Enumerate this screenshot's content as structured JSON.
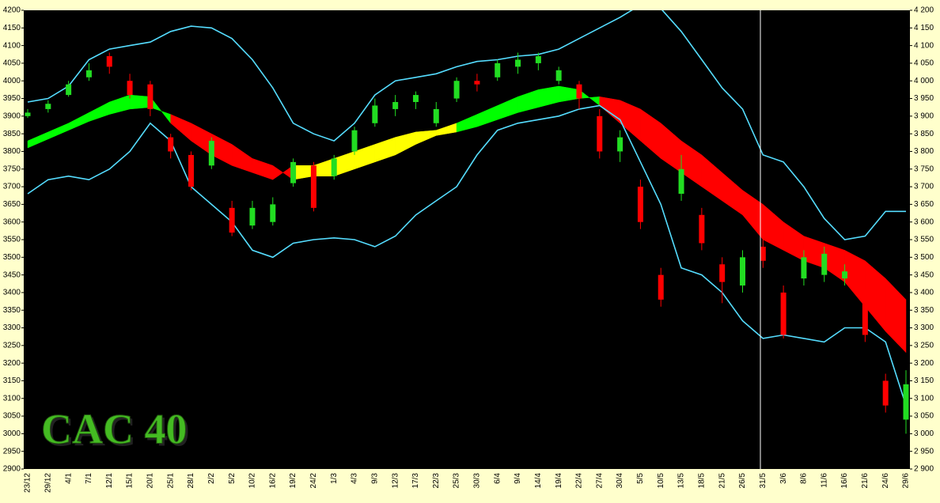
{
  "chart_data": {
    "type": "candlestick",
    "title": "CAC 40",
    "categories": [
      "23/12",
      "29/12",
      "4/1",
      "7/1",
      "12/1",
      "15/1",
      "20/1",
      "25/1",
      "28/1",
      "2/2",
      "5/2",
      "10/2",
      "16/2",
      "19/2",
      "24/2",
      "1/3",
      "4/3",
      "9/3",
      "12/3",
      "17/3",
      "22/3",
      "25/3",
      "30/3",
      "6/4",
      "9/4",
      "14/4",
      "19/4",
      "22/4",
      "27/4",
      "30/4",
      "5/5",
      "10/5",
      "13/5",
      "18/5",
      "21/5",
      "26/5",
      "31/5",
      "3/6",
      "8/6",
      "11/6",
      "16/6",
      "21/6",
      "24/6",
      "29/6"
    ],
    "ohlc": {
      "up_color": "#22dd22",
      "down_color": "#ff0000",
      "open": [
        3900,
        3920,
        3960,
        4010,
        4070,
        4000,
        3990,
        3840,
        3790,
        3760,
        3640,
        3590,
        3600,
        3710,
        3760,
        3730,
        3800,
        3880,
        3920,
        3940,
        3880,
        3950,
        4000,
        4010,
        4040,
        4050,
        4000,
        3990,
        3900,
        3800,
        3700,
        3450,
        3680,
        3620,
        3480,
        3420,
        3530,
        3400,
        3440,
        3450,
        3440,
        3400,
        3150,
        3040
      ],
      "high": [
        3920,
        3945,
        4000,
        4050,
        4080,
        4020,
        4000,
        3850,
        3800,
        3840,
        3660,
        3660,
        3670,
        3780,
        3770,
        3790,
        3870,
        3950,
        3960,
        3970,
        3940,
        4010,
        4020,
        4060,
        4080,
        4080,
        4040,
        4000,
        3920,
        3860,
        3720,
        3470,
        3790,
        3640,
        3500,
        3520,
        3560,
        3420,
        3520,
        3530,
        3480,
        3410,
        3170,
        3180
      ],
      "low": [
        3895,
        3910,
        3955,
        4000,
        4020,
        3950,
        3900,
        3780,
        3690,
        3750,
        3560,
        3580,
        3590,
        3700,
        3630,
        3720,
        3790,
        3870,
        3900,
        3920,
        3870,
        3940,
        3970,
        4000,
        4020,
        4030,
        3990,
        3920,
        3780,
        3770,
        3580,
        3360,
        3660,
        3520,
        3370,
        3400,
        3470,
        3270,
        3420,
        3430,
        3420,
        3260,
        3060,
        3000
      ],
      "close": [
        3910,
        3935,
        3990,
        4030,
        4040,
        3960,
        3920,
        3800,
        3700,
        3830,
        3570,
        3640,
        3650,
        3770,
        3640,
        3780,
        3860,
        3930,
        3940,
        3960,
        3920,
        4000,
        3990,
        4050,
        4060,
        4070,
        4030,
        3950,
        3800,
        3840,
        3600,
        3380,
        3750,
        3540,
        3430,
        3500,
        3490,
        3280,
        3500,
        3510,
        3460,
        3280,
        3080,
        3140
      ]
    },
    "upper_band": {
      "color": "#55ddff",
      "values": [
        3940,
        3950,
        3985,
        4060,
        4090,
        4100,
        4110,
        4140,
        4155,
        4150,
        4120,
        4060,
        3980,
        3880,
        3850,
        3830,
        3880,
        3960,
        4000,
        4010,
        4020,
        4040,
        4055,
        4060,
        4070,
        4075,
        4090,
        4120,
        4150,
        4180,
        4215,
        4205,
        4140,
        4060,
        3980,
        3920,
        3790,
        3770,
        3700,
        3610,
        3550,
        3560,
        3630,
        3630
      ]
    },
    "lower_band": {
      "color": "#55ddff",
      "values": [
        3680,
        3720,
        3730,
        3720,
        3750,
        3800,
        3880,
        3830,
        3700,
        3650,
        3600,
        3520,
        3500,
        3540,
        3550,
        3555,
        3550,
        3530,
        3560,
        3620,
        3660,
        3700,
        3790,
        3860,
        3880,
        3890,
        3900,
        3920,
        3930,
        3890,
        3770,
        3650,
        3470,
        3450,
        3400,
        3320,
        3270,
        3280,
        3270,
        3260,
        3300,
        3300,
        3260,
        3080
      ]
    },
    "ribbon": {
      "fast": [
        3830,
        3855,
        3880,
        3910,
        3940,
        3960,
        3955,
        3880,
        3830,
        3790,
        3760,
        3740,
        3720,
        3760,
        3760,
        3780,
        3800,
        3820,
        3840,
        3855,
        3860,
        3880,
        3905,
        3930,
        3955,
        3975,
        3985,
        3975,
        3930,
        3880,
        3830,
        3780,
        3740,
        3700,
        3660,
        3620,
        3550,
        3520,
        3490,
        3470,
        3430,
        3360,
        3290,
        3230
      ],
      "slow": [
        3810,
        3835,
        3860,
        3885,
        3905,
        3920,
        3925,
        3905,
        3880,
        3850,
        3820,
        3780,
        3760,
        3720,
        3730,
        3730,
        3750,
        3770,
        3790,
        3820,
        3845,
        3855,
        3870,
        3890,
        3910,
        3925,
        3940,
        3950,
        3955,
        3945,
        3920,
        3880,
        3830,
        3790,
        3740,
        3690,
        3650,
        3600,
        3560,
        3540,
        3520,
        3490,
        3440,
        3380
      ],
      "colors": [
        "#00ff00",
        "#00ff00",
        "#00ff00",
        "#00ff00",
        "#00ff00",
        "#00ff00",
        "#00ff00",
        "#ff0000",
        "#ff0000",
        "#ff0000",
        "#ff0000",
        "#ff0000",
        "#ff0000",
        "#ffff00",
        "#ffff00",
        "#ffff00",
        "#ffff00",
        "#ffff00",
        "#ffff00",
        "#ffff00",
        "#ffff00",
        "#00ff00",
        "#00ff00",
        "#00ff00",
        "#00ff00",
        "#00ff00",
        "#00ff00",
        "#00ff00",
        "#ff0000",
        "#ff0000",
        "#ff0000",
        "#ff0000",
        "#ff0000",
        "#ff0000",
        "#ff0000",
        "#ff0000",
        "#ff0000",
        "#ff0000",
        "#ff0000",
        "#ff0000",
        "#ff0000",
        "#ff0000",
        "#ff0000",
        "#ff0000"
      ]
    },
    "ylim": [
      2900,
      4200
    ],
    "yticks": [
      4200,
      4150,
      4100,
      4050,
      4000,
      3950,
      3900,
      3850,
      3800,
      3750,
      3700,
      3650,
      3600,
      3550,
      3500,
      3450,
      3400,
      3350,
      3300,
      3250,
      3200,
      3150,
      3100,
      3050,
      3000,
      2950,
      2900
    ],
    "y2lim": [
      2900,
      4200
    ],
    "y2ticks": [
      {
        "value": 4200,
        "label": "4 200"
      },
      {
        "value": 4150,
        "label": "4 150"
      },
      {
        "value": 4100,
        "label": "4 100"
      },
      {
        "value": 4050,
        "label": "4 050"
      },
      {
        "value": 4000,
        "label": "4 000"
      },
      {
        "value": 3950,
        "label": "3 950"
      },
      {
        "value": 3900,
        "label": "3 900"
      },
      {
        "value": 3850,
        "label": "3 850"
      },
      {
        "value": 3800,
        "label": "3 800"
      },
      {
        "value": 3750,
        "label": "3 750"
      },
      {
        "value": 3700,
        "label": "3 700"
      },
      {
        "value": 3650,
        "label": "3 650"
      },
      {
        "value": 3600,
        "label": "3 600"
      },
      {
        "value": 3550,
        "label": "3 550"
      },
      {
        "value": 3500,
        "label": "3 500"
      },
      {
        "value": 3450,
        "label": "3 450"
      },
      {
        "value": 3400,
        "label": "3 400"
      },
      {
        "value": 3350,
        "label": "3 350"
      },
      {
        "value": 3300,
        "label": "3 300"
      },
      {
        "value": 3250,
        "label": "3 250"
      },
      {
        "value": 3200,
        "label": "3 200"
      },
      {
        "value": 3150,
        "label": "3 150"
      },
      {
        "value": 3100,
        "label": "3 100"
      },
      {
        "value": 3050,
        "label": "3 050"
      },
      {
        "value": 3000,
        "label": "3 000"
      },
      {
        "value": 2950,
        "label": "2 950"
      },
      {
        "value": 2900,
        "label": "2 900"
      }
    ]
  }
}
